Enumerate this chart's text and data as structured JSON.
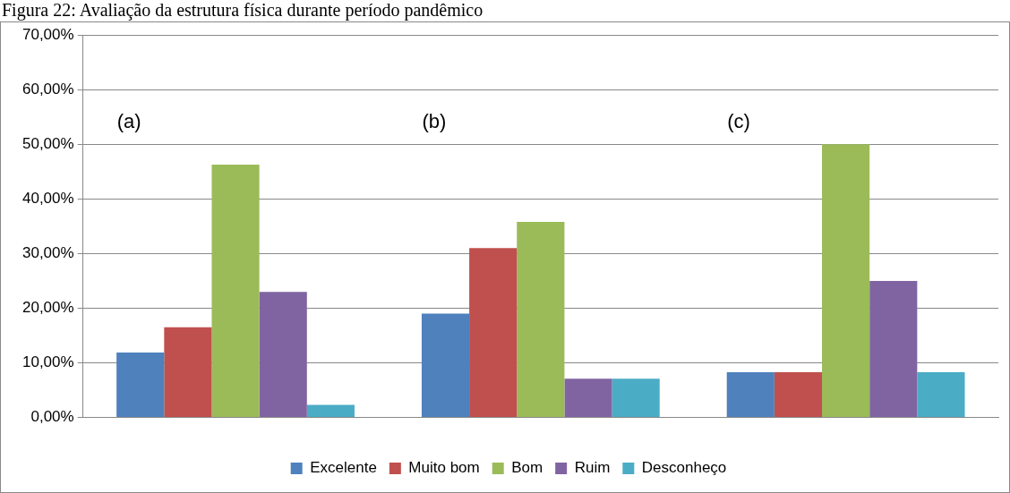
{
  "chart_data": {
    "type": "bar",
    "title": "Figura 22: Avaliação da estrutura física durante período pandêmico",
    "categories": [
      null,
      null,
      null
    ],
    "series": [
      {
        "name": "Excelente",
        "color": "#4f81bd",
        "values": [
          11.9,
          19,
          8.3
        ]
      },
      {
        "name": "Muito bom",
        "color": "#c0504d",
        "values": [
          16.5,
          31,
          8.3
        ]
      },
      {
        "name": "Bom",
        "color": "#9bbb59",
        "values": [
          46.3,
          35.8,
          50
        ]
      },
      {
        "name": "Ruim",
        "color": "#8064a2",
        "values": [
          23,
          7.1,
          25
        ]
      },
      {
        "name": "Desconheço",
        "color": "#4bacc6",
        "values": [
          2.3,
          7.1,
          8.3
        ]
      }
    ],
    "ylim": [
      0,
      70
    ],
    "yticks": [
      {
        "value": 0,
        "label": "0,00%"
      },
      {
        "value": 10,
        "label": "10,00%"
      },
      {
        "value": 20,
        "label": "20,00%"
      },
      {
        "value": 30,
        "label": "30,00%"
      },
      {
        "value": 40,
        "label": "40,00%"
      },
      {
        "value": 50,
        "label": "50,00%"
      },
      {
        "value": 60,
        "label": "60,00%"
      },
      {
        "value": 70,
        "label": "70,00%"
      }
    ],
    "annotations": [
      "(a)",
      "(b)",
      "(c)"
    ],
    "grid": "y",
    "legend": "bottom"
  }
}
